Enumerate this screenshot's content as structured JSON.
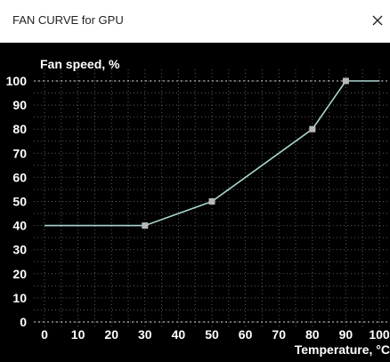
{
  "window": {
    "title": "FAN CURVE for GPU",
    "close_icon": "close-icon"
  },
  "colors": {
    "background": "#000000",
    "grid": "#5a5a5a",
    "axis_text": "#ffffff",
    "curve": "#a8d5cf",
    "point": "#b8b8b8",
    "dotted_line": "#d8d8d8"
  },
  "chart_data": {
    "type": "line",
    "ylabel": "Fan speed, %",
    "xlabel": "Temperature, °C",
    "xlim": [
      0,
      100
    ],
    "ylim": [
      0,
      100
    ],
    "x_ticks": [
      "0",
      "10",
      "20",
      "30",
      "40",
      "50",
      "60",
      "70",
      "80",
      "90",
      "100"
    ],
    "y_ticks": [
      "0",
      "10",
      "20",
      "30",
      "40",
      "50",
      "60",
      "70",
      "80",
      "90",
      "100"
    ],
    "grid": true,
    "series": [
      {
        "x": [
          0,
          30,
          50,
          80,
          90,
          100
        ],
        "y": [
          40,
          40,
          50,
          80,
          100,
          100
        ]
      }
    ],
    "control_points": [
      {
        "x": 30,
        "y": 40
      },
      {
        "x": 50,
        "y": 50
      },
      {
        "x": 80,
        "y": 80
      },
      {
        "x": 90,
        "y": 100
      }
    ]
  }
}
